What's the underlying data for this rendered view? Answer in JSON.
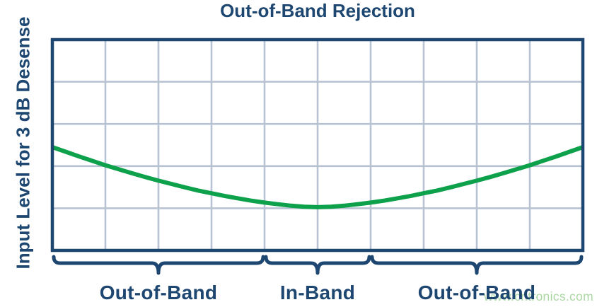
{
  "page": {
    "title": "Out-of-Band Rejection",
    "y_axis_label": "Input Level for 3 dB Desense",
    "watermark": "www.cntronics.com"
  },
  "colors": {
    "navy": "#1d4671",
    "curve_green": "#0da14b",
    "grid_line": "#b7c3d2",
    "watermark_green": "#abd7a3",
    "background": "#ffffff"
  },
  "chart_data": {
    "type": "line",
    "title": "Out-of-Band Rejection",
    "xlabel": "",
    "ylabel": "Input Level for 3 dB Desense",
    "x_axis": {
      "tick_labels_visible": false,
      "divisions": 10
    },
    "y_axis": {
      "tick_labels_visible": false,
      "divisions": 5
    },
    "grid": "on",
    "series": [
      {
        "name": "desense-threshold-curve",
        "color": "#0da14b",
        "description": "Input level required for 3 dB desense vs. frequency: highest out-of-band, minimum in-band (normalized [x, y-from-top] coordinates)",
        "points": [
          [
            0.0,
            0.51
          ],
          [
            0.025,
            0.532
          ],
          [
            0.05,
            0.554
          ],
          [
            0.075,
            0.575
          ],
          [
            0.1,
            0.596
          ],
          [
            0.125,
            0.615
          ],
          [
            0.15,
            0.634
          ],
          [
            0.175,
            0.652
          ],
          [
            0.2,
            0.669
          ],
          [
            0.225,
            0.685
          ],
          [
            0.25,
            0.701
          ],
          [
            0.275,
            0.716
          ],
          [
            0.3,
            0.729
          ],
          [
            0.325,
            0.742
          ],
          [
            0.35,
            0.753
          ],
          [
            0.375,
            0.764
          ],
          [
            0.4,
            0.773
          ],
          [
            0.425,
            0.781
          ],
          [
            0.45,
            0.788
          ],
          [
            0.475,
            0.793
          ],
          [
            0.5,
            0.795
          ],
          [
            0.525,
            0.793
          ],
          [
            0.55,
            0.788
          ],
          [
            0.575,
            0.781
          ],
          [
            0.6,
            0.773
          ],
          [
            0.625,
            0.764
          ],
          [
            0.65,
            0.753
          ],
          [
            0.675,
            0.742
          ],
          [
            0.7,
            0.729
          ],
          [
            0.725,
            0.716
          ],
          [
            0.75,
            0.701
          ],
          [
            0.775,
            0.685
          ],
          [
            0.8,
            0.669
          ],
          [
            0.825,
            0.652
          ],
          [
            0.85,
            0.634
          ],
          [
            0.875,
            0.615
          ],
          [
            0.9,
            0.596
          ],
          [
            0.925,
            0.575
          ],
          [
            0.95,
            0.554
          ],
          [
            0.975,
            0.532
          ],
          [
            1.0,
            0.51
          ]
        ]
      }
    ],
    "bands": [
      {
        "label": "Out-of-Band",
        "from": 0.0,
        "to": 0.4
      },
      {
        "label": "In-Band",
        "from": 0.4,
        "to": 0.6
      },
      {
        "label": "Out-of-Band",
        "from": 0.6,
        "to": 1.0
      }
    ]
  }
}
